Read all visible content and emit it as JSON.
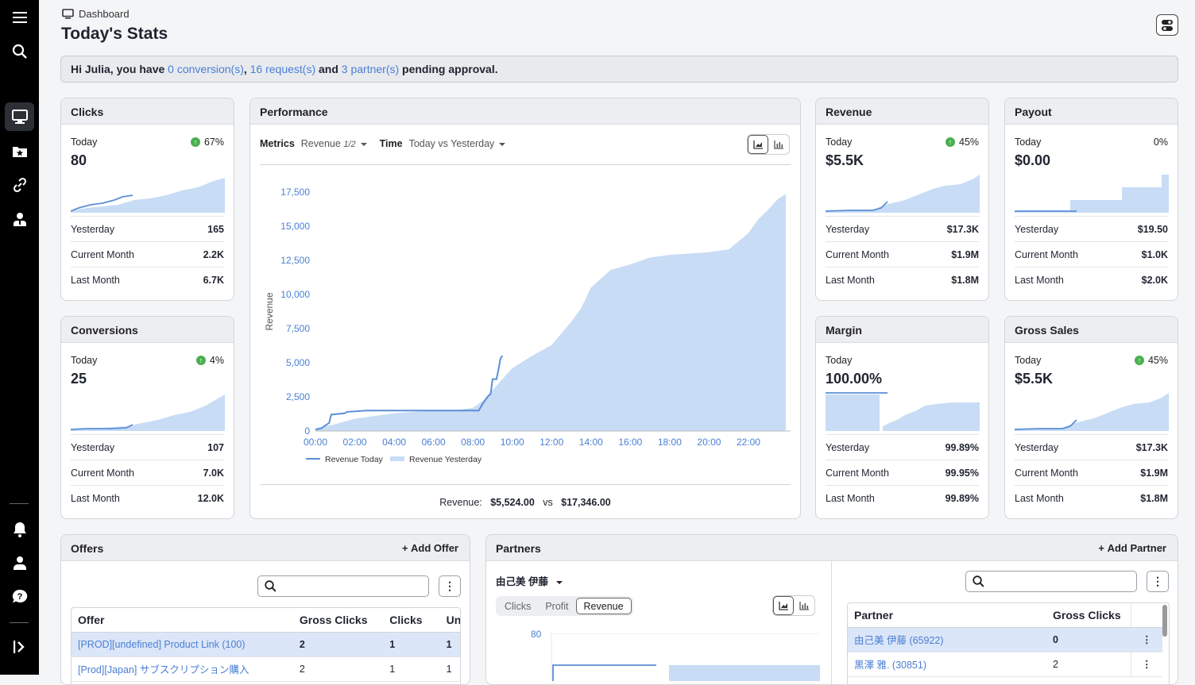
{
  "breadcrumb": {
    "label": "Dashboard"
  },
  "page": {
    "title": "Today's Stats"
  },
  "banner": {
    "greeting": "Hi Julia, you have ",
    "conversions_link": "0 conversion(s)",
    "sep1": ", ",
    "requests_link": "16 request(s)",
    "sep2": " and ",
    "partners_link": "3 partner(s)",
    "tail": " pending approval."
  },
  "clicks": {
    "title": "Clicks",
    "today_label": "Today",
    "pct": "67%",
    "value": "80",
    "rows": [
      {
        "label": "Yesterday",
        "value": "165"
      },
      {
        "label": "Current Month",
        "value": "2.2K"
      },
      {
        "label": "Last Month",
        "value": "6.7K"
      }
    ]
  },
  "conversions": {
    "title": "Conversions",
    "today_label": "Today",
    "pct": "4%",
    "value": "25",
    "rows": [
      {
        "label": "Yesterday",
        "value": "107"
      },
      {
        "label": "Current Month",
        "value": "7.0K"
      },
      {
        "label": "Last Month",
        "value": "12.0K"
      }
    ]
  },
  "revenue": {
    "title": "Revenue",
    "today_label": "Today",
    "pct": "45%",
    "value": "$5.5K",
    "rows": [
      {
        "label": "Yesterday",
        "value": "$17.3K"
      },
      {
        "label": "Current Month",
        "value": "$1.9M"
      },
      {
        "label": "Last Month",
        "value": "$1.8M"
      }
    ]
  },
  "payout": {
    "title": "Payout",
    "today_label": "Today",
    "pct": "0%",
    "value": "$0.00",
    "rows": [
      {
        "label": "Yesterday",
        "value": "$19.50"
      },
      {
        "label": "Current Month",
        "value": "$1.0K"
      },
      {
        "label": "Last Month",
        "value": "$2.0K"
      }
    ]
  },
  "margin": {
    "title": "Margin",
    "today_label": "Today",
    "value": "100.00%",
    "rows": [
      {
        "label": "Yesterday",
        "value": "99.89%"
      },
      {
        "label": "Current Month",
        "value": "99.95%"
      },
      {
        "label": "Last Month",
        "value": "99.89%"
      }
    ]
  },
  "gross_sales": {
    "title": "Gross Sales",
    "today_label": "Today",
    "pct": "45%",
    "value": "$5.5K",
    "rows": [
      {
        "label": "Yesterday",
        "value": "$17.3K"
      },
      {
        "label": "Current Month",
        "value": "$1.9M"
      },
      {
        "label": "Last Month",
        "value": "$1.8M"
      }
    ]
  },
  "performance": {
    "title": "Performance",
    "metrics_label": "Metrics",
    "metrics_value": "Revenue",
    "metrics_count": "1/2",
    "time_label": "Time",
    "time_value": "Today vs Yesterday",
    "summary_label": "Revenue:",
    "summary_today": "$5,524.00",
    "summary_vs": "vs",
    "summary_yesterday": "$17,346.00"
  },
  "chart_data": {
    "type": "line",
    "ylabel": "Revenue",
    "ylim": [
      0,
      17500
    ],
    "yticks": [
      "0",
      "2,500",
      "5,000",
      "7,500",
      "10,000",
      "12,500",
      "15,000",
      "17,500"
    ],
    "x_ticks": [
      "00:00",
      "02:00",
      "04:00",
      "06:00",
      "08:00",
      "10:00",
      "12:00",
      "14:00",
      "16:00",
      "18:00",
      "20:00",
      "22:00"
    ],
    "legend_position": "bottom-left",
    "series": [
      {
        "name": "Revenue Today",
        "kind": "line",
        "color": "#5b8fd6",
        "x": [
          0,
          0.3,
          0.7,
          0.8,
          1.5,
          1.6,
          2.6,
          3.1,
          5.0,
          8.3,
          8.5,
          8.8,
          8.9,
          9.0,
          9.2,
          9.3,
          9.4,
          9.5
        ],
        "y": [
          100,
          200,
          600,
          1200,
          1300,
          1400,
          1500,
          1500,
          1500,
          1500,
          2000,
          2600,
          2700,
          3800,
          3800,
          4500,
          5300,
          5524
        ]
      },
      {
        "name": "Revenue Yesterday",
        "kind": "area",
        "color": "#c8dcf5",
        "x": [
          0,
          1,
          2,
          3,
          4,
          5,
          6,
          7,
          8,
          8.5,
          9,
          10,
          11,
          12,
          13,
          13.5,
          14,
          15,
          16,
          17,
          18,
          19,
          20,
          21,
          22,
          22.5,
          23,
          23.5,
          23.9
        ],
        "y": [
          200,
          500,
          900,
          1100,
          1300,
          1400,
          1500,
          1500,
          1700,
          2200,
          3000,
          4600,
          5500,
          6300,
          8000,
          9000,
          10500,
          11800,
          12200,
          12700,
          12900,
          13000,
          13100,
          13300,
          14500,
          15500,
          16200,
          17000,
          17346
        ]
      }
    ]
  },
  "offers": {
    "title": "Offers",
    "add_label": "Add Offer",
    "search_placeholder": "",
    "columns": [
      "Offer",
      "Gross Clicks",
      "Clicks",
      "Unic"
    ],
    "rows": [
      {
        "offer": "[PROD][undefined] Product Link (100)",
        "gross": "2",
        "clicks": "1",
        "unique": "1"
      },
      {
        "offer": "[Prod][Japan] サブスクリプション購入",
        "gross": "2",
        "clicks": "1",
        "unique": "1"
      }
    ]
  },
  "partners": {
    "title": "Partners",
    "add_label": "Add Partner",
    "selected_partner": "由己美 伊藤",
    "tabs": [
      "Clicks",
      "Profit",
      "Revenue"
    ],
    "selected_tab": "Revenue",
    "mini_chart_ytick": "80",
    "columns": [
      "Partner",
      "Gross Clicks"
    ],
    "rows": [
      {
        "partner": "由己美 伊藤 (65922)",
        "gross": "0"
      },
      {
        "partner": "黒澤 雅. (30851)",
        "gross": "2"
      }
    ]
  }
}
